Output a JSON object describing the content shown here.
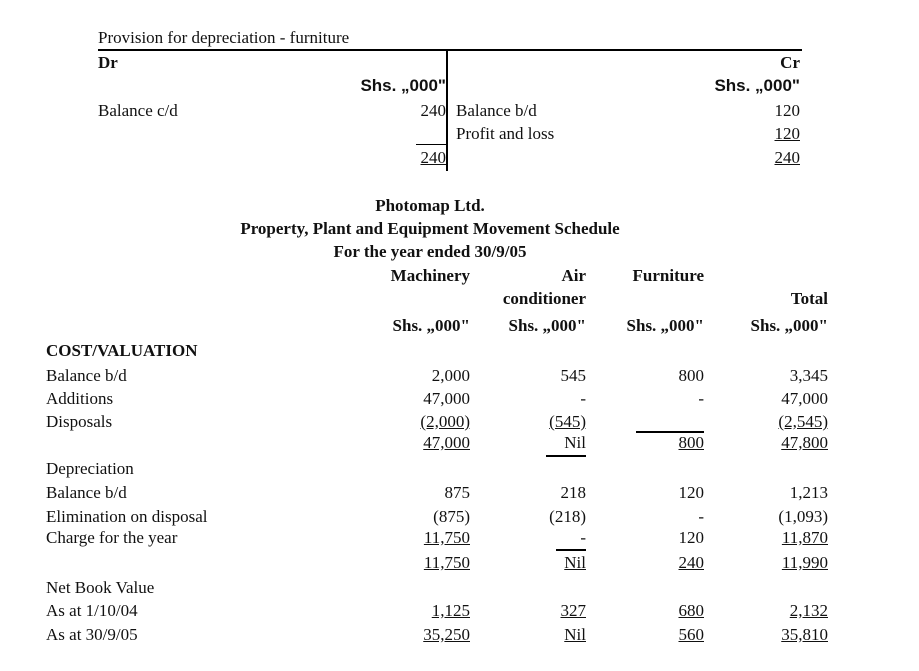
{
  "ledger": {
    "title": "Provision for depreciation - furniture",
    "dr": "Dr",
    "cr": "Cr",
    "currency_dr": "Shs. „000\"",
    "currency_cr": "Shs. „000\"",
    "debit": [
      {
        "label": "Balance c/d",
        "amount": "240"
      }
    ],
    "credit": [
      {
        "label": "Balance b/d",
        "amount": "120"
      },
      {
        "label": "Profit and loss",
        "amount": "120"
      }
    ],
    "total_dr": "240",
    "total_cr": "240"
  },
  "schedule": {
    "company": "Photomap Ltd.",
    "title": "Property, Plant and Equipment Movement Schedule",
    "period": "For the year ended 30/9/05",
    "columns": [
      "Machinery",
      "Air",
      "Furniture",
      ""
    ],
    "columns_line2": [
      "",
      "conditioner",
      "",
      "Total"
    ],
    "currency": [
      "Shs. „000\"",
      "Shs. „000\"",
      "Shs. „000\"",
      "Shs. „000\""
    ],
    "rows": [
      {
        "label": "COST/VALUATION",
        "values": [
          "",
          "",
          "",
          ""
        ]
      },
      {
        "label": "Balance b/d",
        "values": [
          "2,000",
          "545",
          "800",
          "3,345"
        ]
      },
      {
        "label": "Additions",
        "values": [
          "47,000",
          "-",
          "-",
          "47,000"
        ]
      },
      {
        "label": "Disposals",
        "values": [
          "(2,000)",
          "(545)",
          "",
          "(2,545)"
        ]
      },
      {
        "label": "",
        "values": [
          "47,000",
          "Nil",
          "800",
          "47,800"
        ]
      },
      {
        "label": "Depreciation",
        "values": [
          "",
          "",
          "",
          ""
        ]
      },
      {
        "label": "Balance b/d",
        "values": [
          "875",
          "218",
          "120",
          "1,213"
        ]
      },
      {
        "label": "Elimination on disposal",
        "values": [
          "(875)",
          "(218)",
          "-",
          "(1,093)"
        ]
      },
      {
        "label": "Charge for the year",
        "values": [
          "11,750",
          "-",
          "120",
          "11,870"
        ]
      },
      {
        "label": "",
        "values": [
          "11,750",
          "Nil",
          "240",
          "11,990"
        ]
      },
      {
        "label": "Net Book Value",
        "values": [
          "",
          "",
          "",
          ""
        ]
      },
      {
        "label": "As at 1/10/04",
        "values": [
          "1,125",
          "327",
          "680",
          "2,132"
        ]
      },
      {
        "label": "As at 30/9/05",
        "values": [
          "35,250",
          "Nil",
          "560",
          "35,810"
        ]
      }
    ]
  }
}
